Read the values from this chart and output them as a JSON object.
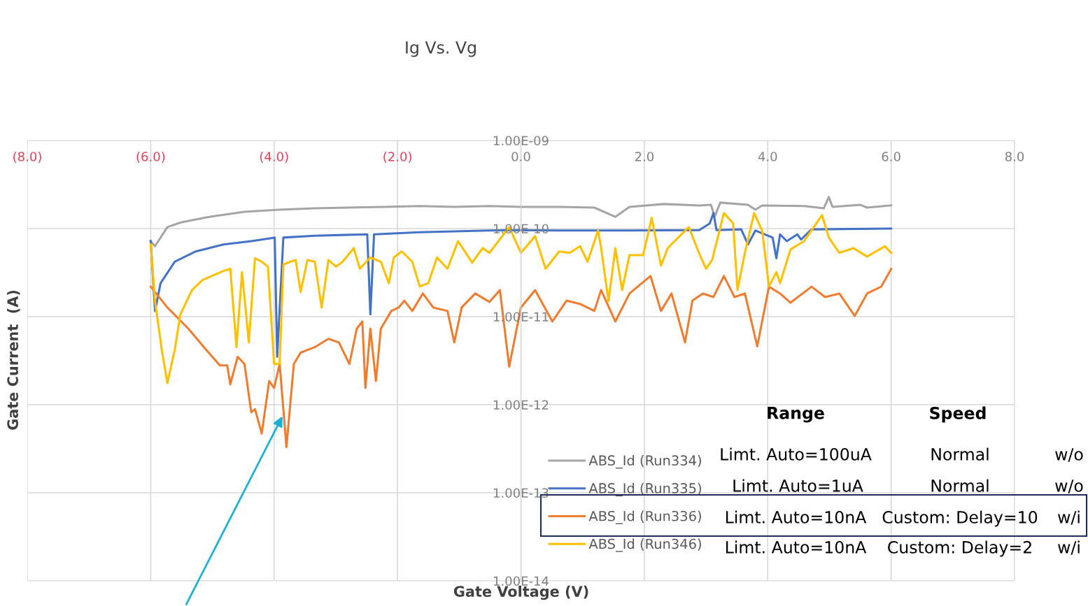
{
  "chart_data": {
    "type": "line",
    "title": "Ig Vs. Vg",
    "xlabel": "Gate Voltage (V)",
    "ylabel": "Gate Current  (A)",
    "log": "y",
    "grid": true,
    "legend": "bottom right",
    "marker": "none",
    "line_style": "solid",
    "xlim": [
      -8,
      8
    ],
    "ylim": [
      1e-14,
      1e-09
    ],
    "xticks": [
      {
        "value": -8,
        "label": "(8.0)"
      },
      {
        "value": -6,
        "label": "(6.0)"
      },
      {
        "value": -4,
        "label": "(4.0)"
      },
      {
        "value": -2,
        "label": "(2.0)"
      },
      {
        "value": 0,
        "label": "0.0"
      },
      {
        "value": 2,
        "label": "2.0"
      },
      {
        "value": 4,
        "label": "4.0"
      },
      {
        "value": 6,
        "label": "6.0"
      },
      {
        "value": 8,
        "label": "8.0"
      }
    ],
    "yticks": [
      {
        "value": 1e-14,
        "label": "1.00E-14"
      },
      {
        "value": 1e-13,
        "label": "1.00E-13"
      },
      {
        "value": 1e-12,
        "label": "1.00E-12"
      },
      {
        "value": 1e-11,
        "label": "1.00E-11"
      },
      {
        "value": 1e-10,
        "label": "1.00E-10"
      },
      {
        "value": 1e-09,
        "label": "1.00E-09"
      }
    ],
    "series": [
      {
        "name": "ABS_Id (Run334)",
        "color": "#a5a5a5",
        "x": [
          -6.0,
          -5.93,
          -5.73,
          -5.5,
          -5.05,
          -4.48,
          -3.91,
          -3.34,
          -2.78,
          -2.21,
          -1.64,
          -1.08,
          -0.51,
          0,
          0.62,
          1.19,
          1.53,
          1.76,
          2.32,
          2.89,
          3.08,
          3.14,
          3.23,
          3.68,
          3.8,
          3.91,
          4.59,
          4.91,
          4.99,
          5.05,
          5.5,
          5.61,
          6.0
        ],
        "values": [
          7.2e-11,
          6.3e-11,
          1.04e-10,
          1.18e-10,
          1.36e-10,
          1.55e-10,
          1.64e-10,
          1.7e-10,
          1.73e-10,
          1.76e-10,
          1.8e-10,
          1.76e-10,
          1.8e-10,
          1.76e-10,
          1.76e-10,
          1.73e-10,
          1.36e-10,
          1.76e-10,
          1.9e-10,
          1.83e-10,
          1.86e-10,
          1.36e-10,
          1.97e-10,
          1.86e-10,
          1.64e-10,
          1.83e-10,
          1.8e-10,
          1.7e-10,
          2.28e-10,
          1.76e-10,
          1.86e-10,
          1.73e-10,
          1.83e-10
        ]
      },
      {
        "name": "ABS_Id (Run335)",
        "color": "#4472c4",
        "x": [
          -6.0,
          -5.93,
          -5.84,
          -5.61,
          -5.27,
          -4.82,
          -4.37,
          -3.99,
          -3.95,
          -3.85,
          -3.34,
          -2.49,
          -2.44,
          -2.38,
          -1.64,
          -0.51,
          0,
          0.62,
          1.76,
          2.89,
          3.06,
          3.12,
          3.17,
          3.57,
          3.68,
          3.8,
          4.08,
          4.14,
          4.2,
          4.31,
          4.48,
          4.54,
          4.71,
          6.0
        ],
        "values": [
          7.2e-11,
          1.16e-11,
          2.4e-11,
          4.2e-11,
          5.5e-11,
          6.6e-11,
          7.2e-11,
          7.9e-11,
          3.5e-12,
          7.9e-11,
          8.3e-11,
          8.6e-11,
          1.06e-11,
          8.6e-11,
          9.1e-11,
          9.5e-11,
          9.6e-11,
          9.5e-11,
          9.5e-11,
          9.6e-11,
          1.14e-10,
          1.5e-10,
          9.6e-11,
          9.8e-11,
          6.6e-11,
          9.5e-11,
          7.9e-11,
          4.6e-11,
          8.6e-11,
          7.2e-11,
          8.6e-11,
          7.5e-11,
          9.8e-11,
          1e-10
        ]
      },
      {
        "name": "ABS_Id (Run336)",
        "color": "#ed7d31",
        "x": [
          -6.0,
          -5.73,
          -5.39,
          -5.1,
          -4.88,
          -4.76,
          -4.71,
          -4.59,
          -4.48,
          -4.37,
          -4.31,
          -4.2,
          -4.08,
          -4.0,
          -3.91,
          -3.8,
          -3.68,
          -3.57,
          -3.34,
          -3.12,
          -2.95,
          -2.78,
          -2.66,
          -2.57,
          -2.52,
          -2.44,
          -2.35,
          -2.27,
          -2.1,
          -1.98,
          -1.89,
          -1.76,
          -1.59,
          -1.42,
          -1.19,
          -1.08,
          -0.96,
          -0.74,
          -0.51,
          -0.34,
          -0.19,
          0,
          0.23,
          0.51,
          0.74,
          0.96,
          1.19,
          1.3,
          1.53,
          1.76,
          2.1,
          2.27,
          2.44,
          2.66,
          2.78,
          2.95,
          3.12,
          3.29,
          3.46,
          3.63,
          3.83,
          4.02,
          4.2,
          4.37,
          4.71,
          4.93,
          5.16,
          5.41,
          5.61,
          5.84,
          6.0
        ],
        "values": [
          2.19e-11,
          1.27e-11,
          7.3e-12,
          4.2e-12,
          2.8e-12,
          2.8e-12,
          1.7e-12,
          3.5e-12,
          2.9e-12,
          8.2e-13,
          8.9e-13,
          4.7e-13,
          1.86e-12,
          1.55e-12,
          2.9e-12,
          3.3e-13,
          2.9e-12,
          3.9e-12,
          4.5e-12,
          5.6e-12,
          5.1e-12,
          2.9e-12,
          7.3e-12,
          8.8e-12,
          1.55e-12,
          7.3e-12,
          1.86e-12,
          7.3e-12,
          1.16e-11,
          1.27e-11,
          1.52e-11,
          1.16e-11,
          1.83e-11,
          1.27e-11,
          1.16e-11,
          5.1e-12,
          1.27e-11,
          1.83e-11,
          1.47e-11,
          2e-11,
          2.7e-12,
          1.27e-11,
          2e-11,
          8.8e-12,
          1.52e-11,
          1.39e-11,
          1.16e-11,
          2e-11,
          8.8e-12,
          1.83e-11,
          2.89e-11,
          1.16e-11,
          1.83e-11,
          5.1e-12,
          1.52e-11,
          1.83e-11,
          1.67e-11,
          2.89e-11,
          1.67e-11,
          1.83e-11,
          4.6e-12,
          2.19e-11,
          1.83e-11,
          1.44e-11,
          2.19e-11,
          1.67e-11,
          1.83e-11,
          1.02e-11,
          1.83e-11,
          2.19e-11,
          3.47e-11
        ]
      },
      {
        "name": "ABS_Id (Run346)",
        "color": "#ffc000",
        "x": [
          -6.0,
          -5.93,
          -5.82,
          -5.73,
          -5.61,
          -5.52,
          -5.33,
          -5.16,
          -4.82,
          -4.71,
          -4.61,
          -4.52,
          -4.41,
          -4.31,
          -4.2,
          -4.1,
          -4.0,
          -3.91,
          -3.85,
          -3.74,
          -3.65,
          -3.57,
          -3.46,
          -3.34,
          -3.23,
          -3.12,
          -3.0,
          -2.89,
          -2.71,
          -2.61,
          -2.44,
          -2.27,
          -2.14,
          -2.06,
          -1.93,
          -1.76,
          -1.64,
          -1.5,
          -1.36,
          -1.19,
          -1.02,
          -0.91,
          -0.79,
          -0.62,
          -0.51,
          -0.19,
          0,
          0.23,
          0.4,
          0.62,
          0.79,
          0.96,
          1.08,
          1.25,
          1.3,
          1.42,
          1.53,
          1.64,
          1.76,
          1.98,
          2.12,
          2.27,
          2.38,
          2.49,
          2.72,
          2.89,
          3.0,
          3.1,
          3.29,
          3.44,
          3.51,
          3.63,
          3.78,
          3.91,
          4.02,
          4.14,
          4.2,
          4.37,
          4.59,
          4.88,
          4.99,
          5.16,
          5.39,
          5.61,
          5.9,
          6.0
        ],
        "values": [
          6.6e-11,
          1.5e-11,
          4.2e-12,
          1.76e-12,
          4.2e-12,
          1.06e-11,
          2e-11,
          2.6e-11,
          3.3e-11,
          3.5e-11,
          4.5e-12,
          3.2e-11,
          5.1e-12,
          4.6e-11,
          4.2e-11,
          3.7e-11,
          2.9e-12,
          2.9e-12,
          3.9e-11,
          4.2e-11,
          4.4e-11,
          1.9e-11,
          4.4e-11,
          4.2e-11,
          1.27e-11,
          4.4e-11,
          3.7e-11,
          4.2e-11,
          6e-11,
          3.5e-11,
          4.7e-11,
          4.2e-11,
          2.4e-11,
          4.7e-11,
          5.5e-11,
          4.2e-11,
          2.2e-11,
          2.4e-11,
          4.7e-11,
          3.5e-11,
          7.2e-11,
          5.5e-11,
          4.1e-11,
          6e-11,
          5.3e-11,
          1.04e-10,
          5.3e-11,
          8.2e-11,
          3.5e-11,
          5.5e-11,
          5.3e-11,
          6.3e-11,
          4.2e-11,
          9.5e-11,
          6e-11,
          1.5e-11,
          6e-11,
          2e-11,
          5e-11,
          5e-11,
          1.32e-10,
          3.8e-11,
          6e-11,
          7.2e-11,
          1.04e-10,
          5.2e-11,
          3.5e-11,
          4.4e-11,
          1.5e-10,
          1.14e-10,
          2e-11,
          5.3e-11,
          1.5e-10,
          9.5e-11,
          2.2e-11,
          3.2e-11,
          2.4e-11,
          5.8e-11,
          7.2e-11,
          1.42e-10,
          7.9e-11,
          5.3e-11,
          6e-11,
          4.8e-11,
          6.3e-11,
          5.3e-11
        ]
      }
    ],
    "annotations": [
      "Range",
      "Speed",
      "Limt. Auto=100uA",
      "Normal",
      "w/o",
      "Limt. Auto=1uA",
      "Normal",
      "w/o",
      "Limt. Auto=10nA",
      "Custom: Delay=10",
      "w/i",
      "Limt. Auto=10nA",
      "Custom: Delay=2",
      "w/i"
    ]
  }
}
